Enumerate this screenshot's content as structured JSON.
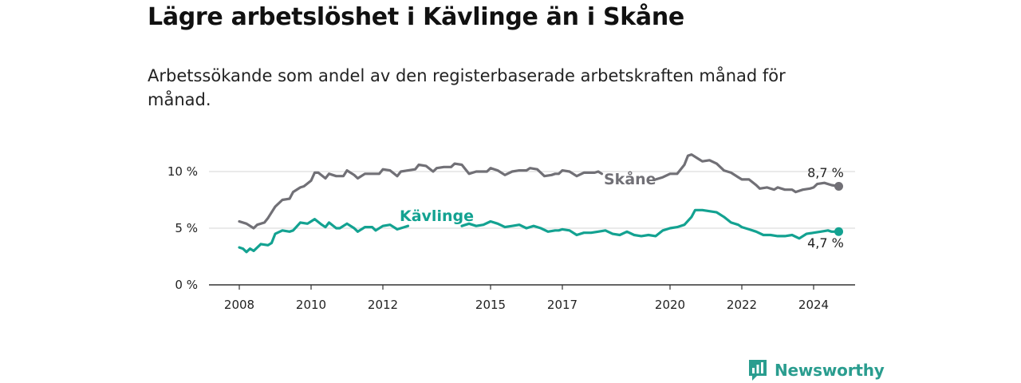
{
  "header": {
    "title": "Lägre arbetslöshet i Kävlinge än i Skåne",
    "subtitle": "Arbetssökande som andel av den registerbaserade arbetskraften månad för månad."
  },
  "colors": {
    "skane": "#717076",
    "kavlinge": "#13a291",
    "grid": "#dddddd",
    "axis": "#333333",
    "brand": "#2a9d8f"
  },
  "logo": {
    "text": "Newsworthy",
    "icon": "newsworthy-chart-icon"
  },
  "chart_data": {
    "type": "line",
    "title": "Lägre arbetslöshet i Kävlinge än i Skåne",
    "xlabel": "",
    "ylabel": "",
    "xlim": [
      2007.6,
      2025.2
    ],
    "ylim": [
      0,
      10
    ],
    "y_ticks": [
      {
        "value": 0,
        "label": "0 %"
      },
      {
        "value": 5,
        "label": "5 %"
      },
      {
        "value": 10,
        "label": "10 %"
      }
    ],
    "x_ticks": [
      {
        "value": 2008,
        "label": "2008"
      },
      {
        "value": 2010,
        "label": "2010"
      },
      {
        "value": 2012,
        "label": "2012"
      },
      {
        "value": 2015,
        "label": "2015"
      },
      {
        "value": 2017,
        "label": "2017"
      },
      {
        "value": 2020,
        "label": "2020"
      },
      {
        "value": 2022,
        "label": "2022"
      },
      {
        "value": 2024,
        "label": "2024"
      }
    ],
    "grid": "horizontal",
    "series": [
      {
        "name": "Skåne",
        "label": "Skåne",
        "end_label": "8,7 %",
        "points": [
          [
            2008.0,
            5.6
          ],
          [
            2008.2,
            5.4
          ],
          [
            2008.4,
            5.0
          ],
          [
            2008.5,
            5.3
          ],
          [
            2008.7,
            5.5
          ],
          [
            2008.8,
            5.9
          ],
          [
            2009.0,
            6.9
          ],
          [
            2009.2,
            7.5
          ],
          [
            2009.4,
            7.6
          ],
          [
            2009.5,
            8.2
          ],
          [
            2009.7,
            8.6
          ],
          [
            2009.8,
            8.7
          ],
          [
            2010.0,
            9.2
          ],
          [
            2010.1,
            9.9
          ],
          [
            2010.2,
            9.9
          ],
          [
            2010.4,
            9.4
          ],
          [
            2010.5,
            9.8
          ],
          [
            2010.7,
            9.6
          ],
          [
            2010.9,
            9.6
          ],
          [
            2011.0,
            10.1
          ],
          [
            2011.2,
            9.7
          ],
          [
            2011.3,
            9.4
          ],
          [
            2011.5,
            9.8
          ],
          [
            2011.7,
            9.8
          ],
          [
            2011.9,
            9.8
          ],
          [
            2012.0,
            10.2
          ],
          [
            2012.2,
            10.1
          ],
          [
            2012.4,
            9.6
          ],
          [
            2012.5,
            10.0
          ],
          [
            2012.7,
            10.1
          ],
          [
            2012.9,
            10.2
          ],
          [
            2013.0,
            10.6
          ],
          [
            2013.2,
            10.5
          ],
          [
            2013.4,
            10.0
          ],
          [
            2013.5,
            10.3
          ],
          [
            2013.7,
            10.4
          ],
          [
            2013.9,
            10.4
          ],
          [
            2014.0,
            10.7
          ],
          [
            2014.2,
            10.6
          ],
          [
            2014.4,
            9.8
          ],
          [
            2014.6,
            10.0
          ],
          [
            2014.8,
            10.0
          ],
          [
            2014.9,
            10.0
          ],
          [
            2015.0,
            10.3
          ],
          [
            2015.2,
            10.1
          ],
          [
            2015.4,
            9.7
          ],
          [
            2015.6,
            10.0
          ],
          [
            2015.8,
            10.1
          ],
          [
            2016.0,
            10.1
          ],
          [
            2016.1,
            10.3
          ],
          [
            2016.3,
            10.2
          ],
          [
            2016.5,
            9.6
          ],
          [
            2016.7,
            9.7
          ],
          [
            2016.8,
            9.8
          ],
          [
            2016.9,
            9.8
          ],
          [
            2017.0,
            10.1
          ],
          [
            2017.2,
            10.0
          ],
          [
            2017.4,
            9.6
          ],
          [
            2017.6,
            9.9
          ],
          [
            2017.8,
            9.9
          ],
          [
            2017.9,
            9.9
          ],
          [
            2018.0,
            10.0
          ],
          [
            2018.1,
            9.8
          ]
        ],
        "points_b": [
          [
            2019.6,
            9.3
          ],
          [
            2019.8,
            9.5
          ],
          [
            2020.0,
            9.8
          ],
          [
            2020.2,
            9.8
          ],
          [
            2020.4,
            10.6
          ],
          [
            2020.5,
            11.4
          ],
          [
            2020.6,
            11.5
          ],
          [
            2020.8,
            11.1
          ],
          [
            2020.9,
            10.9
          ],
          [
            2021.1,
            11.0
          ],
          [
            2021.3,
            10.7
          ],
          [
            2021.5,
            10.1
          ],
          [
            2021.7,
            9.9
          ],
          [
            2021.9,
            9.5
          ],
          [
            2022.0,
            9.3
          ],
          [
            2022.2,
            9.3
          ],
          [
            2022.4,
            8.8
          ],
          [
            2022.5,
            8.5
          ],
          [
            2022.7,
            8.6
          ],
          [
            2022.9,
            8.4
          ],
          [
            2023.0,
            8.6
          ],
          [
            2023.2,
            8.4
          ],
          [
            2023.4,
            8.4
          ],
          [
            2023.5,
            8.2
          ],
          [
            2023.7,
            8.4
          ],
          [
            2023.9,
            8.5
          ],
          [
            2024.0,
            8.6
          ],
          [
            2024.1,
            8.9
          ],
          [
            2024.3,
            9.0
          ],
          [
            2024.5,
            8.8
          ],
          [
            2024.7,
            8.7
          ]
        ]
      },
      {
        "name": "Kävlinge",
        "label": "Kävlinge",
        "end_label": "4,7 %",
        "points": [
          [
            2008.0,
            3.3
          ],
          [
            2008.1,
            3.2
          ],
          [
            2008.2,
            2.9
          ],
          [
            2008.3,
            3.2
          ],
          [
            2008.4,
            3.0
          ],
          [
            2008.6,
            3.6
          ],
          [
            2008.8,
            3.5
          ],
          [
            2008.9,
            3.7
          ],
          [
            2009.0,
            4.5
          ],
          [
            2009.2,
            4.8
          ],
          [
            2009.4,
            4.7
          ],
          [
            2009.5,
            4.8
          ],
          [
            2009.7,
            5.5
          ],
          [
            2009.9,
            5.4
          ],
          [
            2010.0,
            5.6
          ],
          [
            2010.1,
            5.8
          ],
          [
            2010.3,
            5.3
          ],
          [
            2010.4,
            5.1
          ],
          [
            2010.5,
            5.5
          ],
          [
            2010.7,
            5.0
          ],
          [
            2010.8,
            5.0
          ],
          [
            2011.0,
            5.4
          ],
          [
            2011.2,
            5.0
          ],
          [
            2011.3,
            4.7
          ],
          [
            2011.5,
            5.1
          ],
          [
            2011.7,
            5.1
          ],
          [
            2011.8,
            4.8
          ],
          [
            2012.0,
            5.2
          ],
          [
            2012.2,
            5.3
          ],
          [
            2012.4,
            4.9
          ],
          [
            2012.6,
            5.1
          ],
          [
            2012.7,
            5.2
          ]
        ],
        "points_b": [
          [
            2014.2,
            5.2
          ],
          [
            2014.4,
            5.4
          ],
          [
            2014.6,
            5.2
          ],
          [
            2014.8,
            5.3
          ],
          [
            2015.0,
            5.6
          ],
          [
            2015.2,
            5.4
          ],
          [
            2015.4,
            5.1
          ],
          [
            2015.6,
            5.2
          ],
          [
            2015.8,
            5.3
          ],
          [
            2016.0,
            5.0
          ],
          [
            2016.2,
            5.2
          ],
          [
            2016.4,
            5.0
          ],
          [
            2016.6,
            4.7
          ],
          [
            2016.8,
            4.8
          ],
          [
            2016.9,
            4.8
          ],
          [
            2017.0,
            4.9
          ],
          [
            2017.2,
            4.8
          ],
          [
            2017.4,
            4.4
          ],
          [
            2017.6,
            4.6
          ],
          [
            2017.8,
            4.6
          ],
          [
            2018.0,
            4.7
          ],
          [
            2018.2,
            4.8
          ],
          [
            2018.4,
            4.5
          ],
          [
            2018.6,
            4.4
          ],
          [
            2018.8,
            4.7
          ],
          [
            2019.0,
            4.4
          ],
          [
            2019.2,
            4.3
          ],
          [
            2019.4,
            4.4
          ],
          [
            2019.6,
            4.3
          ],
          [
            2019.8,
            4.8
          ],
          [
            2020.0,
            5.0
          ],
          [
            2020.2,
            5.1
          ],
          [
            2020.4,
            5.3
          ],
          [
            2020.6,
            6.0
          ],
          [
            2020.7,
            6.6
          ],
          [
            2020.9,
            6.6
          ],
          [
            2021.1,
            6.5
          ],
          [
            2021.3,
            6.4
          ],
          [
            2021.5,
            6.0
          ],
          [
            2021.7,
            5.5
          ],
          [
            2021.9,
            5.3
          ],
          [
            2022.0,
            5.1
          ],
          [
            2022.2,
            4.9
          ],
          [
            2022.4,
            4.7
          ],
          [
            2022.6,
            4.4
          ],
          [
            2022.8,
            4.4
          ],
          [
            2023.0,
            4.3
          ],
          [
            2023.2,
            4.3
          ],
          [
            2023.4,
            4.4
          ],
          [
            2023.6,
            4.1
          ],
          [
            2023.8,
            4.5
          ],
          [
            2024.0,
            4.6
          ],
          [
            2024.2,
            4.7
          ],
          [
            2024.4,
            4.8
          ],
          [
            2024.5,
            4.7
          ],
          [
            2024.7,
            4.7
          ]
        ]
      }
    ]
  }
}
